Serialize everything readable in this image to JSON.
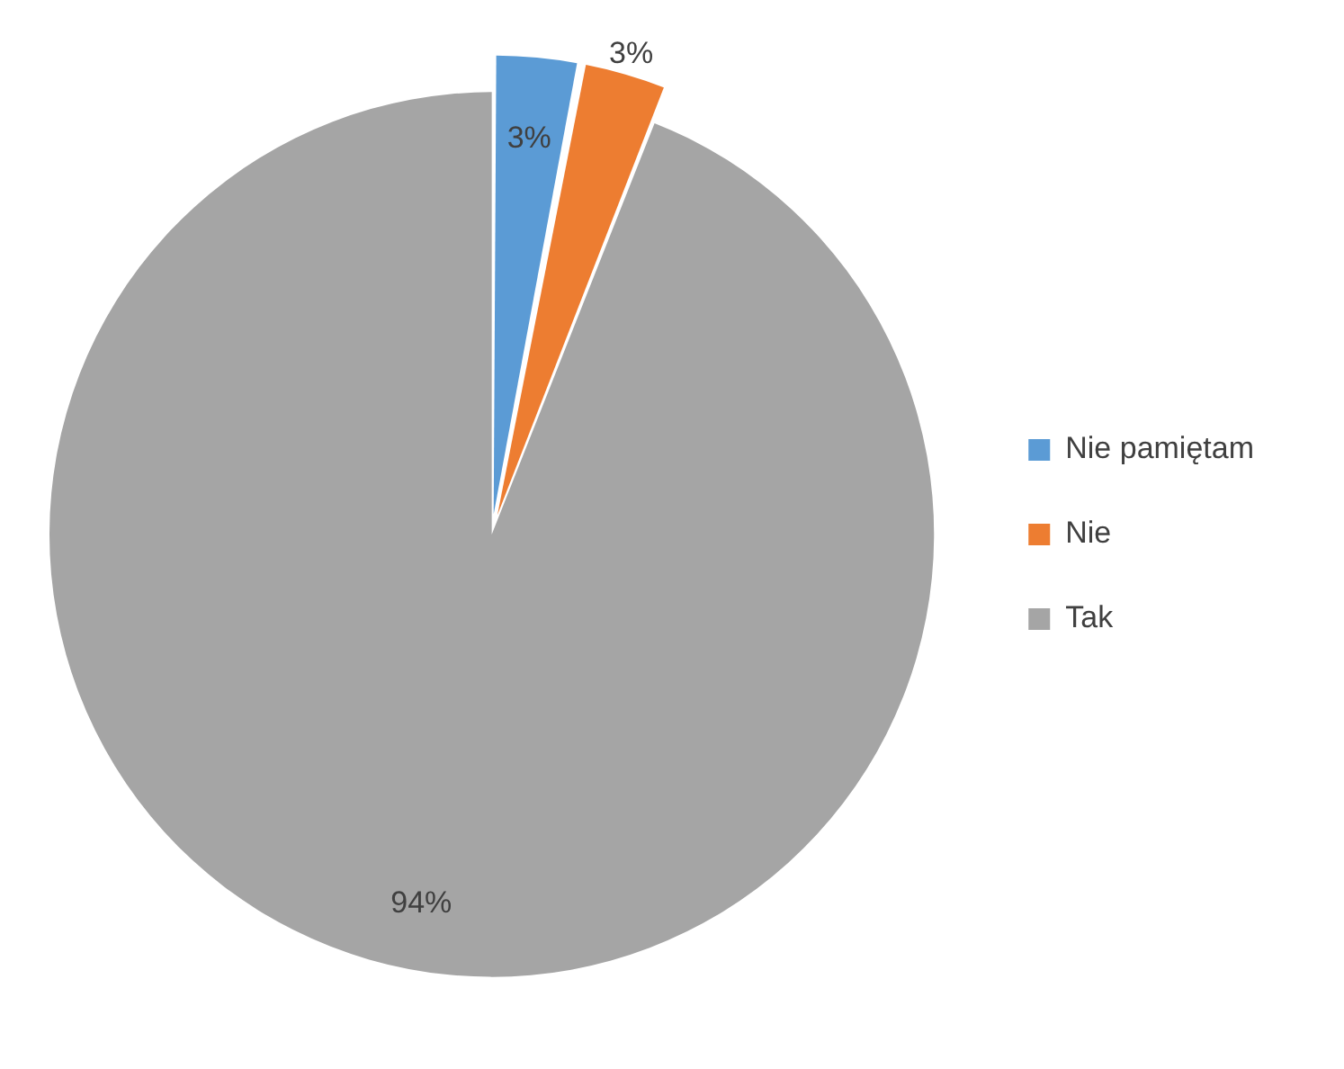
{
  "chart_data": {
    "type": "pie",
    "categories": [
      "Nie pamiętam",
      "Nie",
      "Tak"
    ],
    "values": [
      3,
      3,
      94
    ],
    "colors": [
      "#5b9bd5",
      "#ed7d31",
      "#a5a5a5"
    ],
    "value_labels": [
      "3%",
      "3%",
      "94%"
    ],
    "legend": "right"
  }
}
